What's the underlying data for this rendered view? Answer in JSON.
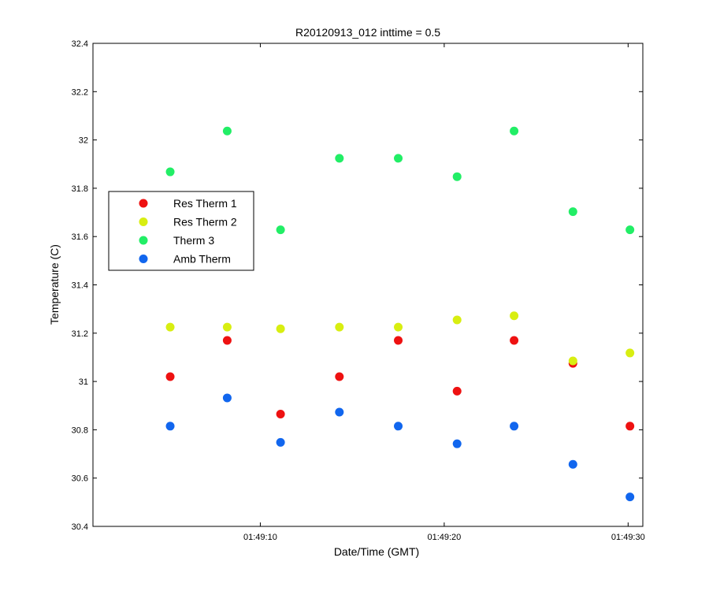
{
  "chart_data": {
    "type": "scatter",
    "title": "R20120913_012 inttime = 0.5",
    "xlabel": "Date/Time (GMT)",
    "ylabel": "Temperature (C)",
    "x_tick_labels": [
      "01:49:10",
      "01:49:20",
      "01:49:30"
    ],
    "x_tick_values": [
      10,
      20,
      30
    ],
    "xlim": [
      0.9,
      30.8
    ],
    "ylim": [
      30.4,
      32.4
    ],
    "y_ticks": [
      30.4,
      30.6,
      30.8,
      31,
      31.2,
      31.4,
      31.6,
      31.8,
      32,
      32.2,
      32.4
    ],
    "y_tick_labels": [
      "30.4",
      "30.6",
      "30.8",
      "31",
      "31.2",
      "31.4",
      "31.6",
      "31.8",
      "32",
      "32.2",
      "32.4"
    ],
    "x": [
      5.1,
      8.2,
      11.1,
      14.3,
      17.5,
      20.7,
      23.8,
      27.0,
      30.1
    ],
    "legend_position": "left",
    "grid": false,
    "series": [
      {
        "name": "Res Therm 1",
        "color": "#ee1111",
        "values": [
          31.02,
          31.17,
          30.865,
          31.02,
          31.17,
          30.96,
          31.17,
          31.075,
          30.815
        ]
      },
      {
        "name": "Res Therm 2",
        "color": "#d8ee11",
        "values": [
          31.225,
          31.225,
          31.218,
          31.225,
          31.225,
          31.255,
          31.272,
          31.085,
          31.118
        ]
      },
      {
        "name": "Therm 3",
        "color": "#22ee66",
        "values": [
          31.868,
          32.037,
          31.628,
          31.924,
          31.924,
          31.848,
          32.037,
          31.703,
          31.628
        ]
      },
      {
        "name": "Amb Therm",
        "color": "#1166ee",
        "values": [
          30.815,
          30.932,
          30.748,
          30.873,
          30.815,
          30.742,
          30.815,
          30.657,
          30.522
        ]
      }
    ]
  }
}
